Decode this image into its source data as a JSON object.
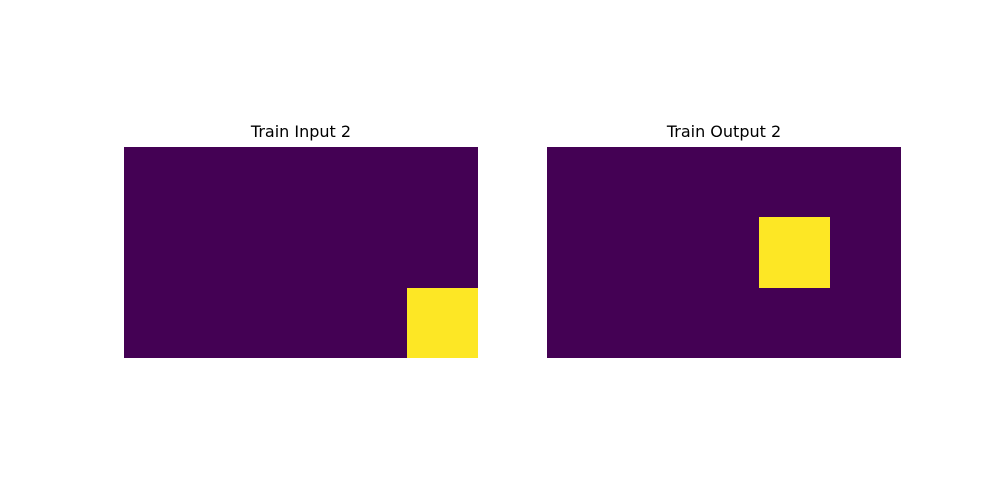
{
  "colors": {
    "background": "#ffffff",
    "value_0": "#440154",
    "value_1": "#fde725"
  },
  "chart_data": [
    {
      "type": "heatmap",
      "title": "Train Input 2",
      "colormap": "viridis",
      "grid": false,
      "axes": "off",
      "values": [
        [
          0,
          0,
          0,
          0,
          0
        ],
        [
          0,
          0,
          0,
          0,
          0
        ],
        [
          0,
          0,
          0,
          0,
          1
        ]
      ]
    },
    {
      "type": "heatmap",
      "title": "Train Output 2",
      "colormap": "viridis",
      "grid": false,
      "axes": "off",
      "values": [
        [
          0,
          0,
          0,
          0,
          0
        ],
        [
          0,
          0,
          0,
          1,
          0
        ],
        [
          0,
          0,
          0,
          0,
          0
        ]
      ]
    }
  ]
}
